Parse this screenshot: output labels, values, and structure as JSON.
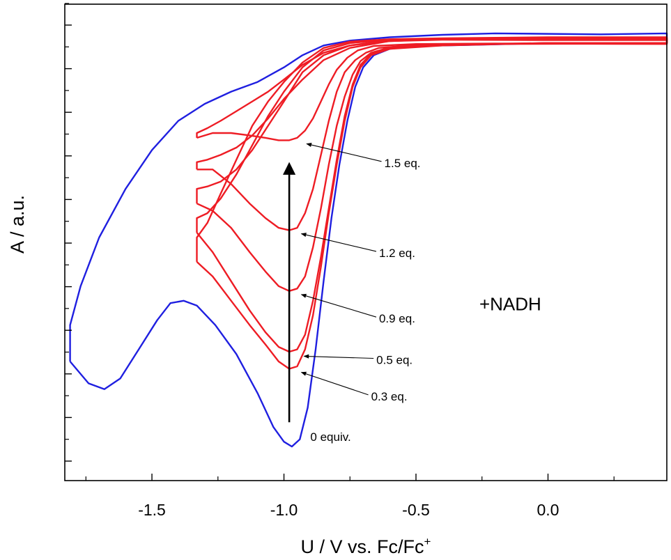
{
  "chart_data": {
    "type": "line",
    "xlabel": "U / V vs. Fc/Fc",
    "xlabel_sup": "+",
    "ylabel": "A / a.u.",
    "xlim": [
      -1.83,
      0.45
    ],
    "ylim": [
      -0.9,
      0.08
    ],
    "x_ticks": [
      -1.5,
      -1.0,
      -0.5,
      0.0
    ],
    "x_tick_labels": [
      "-1.5",
      "-1.0",
      "-0.5",
      "0.0"
    ],
    "y_tick_labels_shown": false,
    "grid": false,
    "colors": {
      "zero_equiv": "#1f1fe0",
      "nadh": "#ee1c24",
      "arrow": "#000000"
    },
    "series": [
      {
        "name": "0 equiv.",
        "color": "#1f1fe0",
        "points": [
          [
            -1.81,
            -0.655
          ],
          [
            -1.74,
            -0.7
          ],
          [
            -1.68,
            -0.712
          ],
          [
            -1.62,
            -0.69
          ],
          [
            -1.55,
            -0.63
          ],
          [
            -1.48,
            -0.57
          ],
          [
            -1.43,
            -0.535
          ],
          [
            -1.38,
            -0.53
          ],
          [
            -1.33,
            -0.54
          ],
          [
            -1.26,
            -0.58
          ],
          [
            -1.18,
            -0.64
          ],
          [
            -1.1,
            -0.72
          ],
          [
            -1.04,
            -0.79
          ],
          [
            -1.0,
            -0.82
          ],
          [
            -0.97,
            -0.83
          ],
          [
            -0.94,
            -0.815
          ],
          [
            -0.91,
            -0.75
          ],
          [
            -0.88,
            -0.63
          ],
          [
            -0.85,
            -0.49
          ],
          [
            -0.82,
            -0.36
          ],
          [
            -0.79,
            -0.25
          ],
          [
            -0.76,
            -0.16
          ],
          [
            -0.73,
            -0.09
          ],
          [
            -0.7,
            -0.05
          ],
          [
            -0.66,
            -0.025
          ],
          [
            -0.6,
            -0.012
          ],
          [
            -0.5,
            -0.006
          ],
          [
            -0.3,
            -0.004
          ],
          [
            0.0,
            0.0
          ],
          [
            0.45,
            0.0
          ],
          [
            0.45,
            0.02
          ],
          [
            0.2,
            0.018
          ],
          [
            -0.2,
            0.02
          ],
          [
            -0.4,
            0.017
          ],
          [
            -0.6,
            0.012
          ],
          [
            -0.75,
            0.005
          ],
          [
            -0.85,
            -0.005
          ],
          [
            -0.93,
            -0.025
          ],
          [
            -1.0,
            -0.05
          ],
          [
            -1.1,
            -0.08
          ],
          [
            -1.2,
            -0.1
          ],
          [
            -1.3,
            -0.125
          ],
          [
            -1.4,
            -0.16
          ],
          [
            -1.5,
            -0.22
          ],
          [
            -1.6,
            -0.3
          ],
          [
            -1.7,
            -0.4
          ],
          [
            -1.77,
            -0.5
          ],
          [
            -1.81,
            -0.58
          ],
          [
            -1.81,
            -0.655
          ]
        ]
      },
      {
        "name": "0.3 eq.",
        "color": "#ee1c24",
        "points": [
          [
            -1.33,
            -0.45
          ],
          [
            -1.27,
            -0.48
          ],
          [
            -1.2,
            -0.53
          ],
          [
            -1.13,
            -0.58
          ],
          [
            -1.07,
            -0.62
          ],
          [
            -1.02,
            -0.655
          ],
          [
            -0.98,
            -0.67
          ],
          [
            -0.95,
            -0.665
          ],
          [
            -0.92,
            -0.63
          ],
          [
            -0.89,
            -0.56
          ],
          [
            -0.86,
            -0.46
          ],
          [
            -0.83,
            -0.35
          ],
          [
            -0.8,
            -0.25
          ],
          [
            -0.77,
            -0.16
          ],
          [
            -0.74,
            -0.09
          ],
          [
            -0.71,
            -0.05
          ],
          [
            -0.67,
            -0.025
          ],
          [
            -0.6,
            -0.012
          ],
          [
            -0.4,
            -0.005
          ],
          [
            0.0,
            0.0
          ],
          [
            0.45,
            0.0
          ],
          [
            0.45,
            0.012
          ],
          [
            0.0,
            0.012
          ],
          [
            -0.4,
            0.01
          ],
          [
            -0.6,
            0.008
          ],
          [
            -0.75,
            0.003
          ],
          [
            -0.85,
            -0.01
          ],
          [
            -0.93,
            -0.04
          ],
          [
            -1.0,
            -0.08
          ],
          [
            -1.06,
            -0.12
          ],
          [
            -1.12,
            -0.17
          ],
          [
            -1.18,
            -0.24
          ],
          [
            -1.24,
            -0.31
          ],
          [
            -1.29,
            -0.37
          ],
          [
            -1.33,
            -0.4
          ],
          [
            -1.33,
            -0.45
          ]
        ]
      },
      {
        "name": "0.5 eq.",
        "color": "#ee1c24",
        "points": [
          [
            -1.33,
            -0.39
          ],
          [
            -1.27,
            -0.43
          ],
          [
            -1.2,
            -0.49
          ],
          [
            -1.13,
            -0.55
          ],
          [
            -1.07,
            -0.595
          ],
          [
            -1.02,
            -0.625
          ],
          [
            -0.98,
            -0.635
          ],
          [
            -0.95,
            -0.63
          ],
          [
            -0.92,
            -0.6
          ],
          [
            -0.89,
            -0.53
          ],
          [
            -0.86,
            -0.44
          ],
          [
            -0.83,
            -0.34
          ],
          [
            -0.8,
            -0.24
          ],
          [
            -0.77,
            -0.15
          ],
          [
            -0.74,
            -0.085
          ],
          [
            -0.71,
            -0.045
          ],
          [
            -0.67,
            -0.022
          ],
          [
            -0.6,
            -0.01
          ],
          [
            -0.4,
            -0.004
          ],
          [
            0.0,
            0.0
          ],
          [
            0.45,
            0.0
          ],
          [
            0.45,
            0.01
          ],
          [
            0.0,
            0.01
          ],
          [
            -0.4,
            0.009
          ],
          [
            -0.6,
            0.007
          ],
          [
            -0.75,
            0.0
          ],
          [
            -0.85,
            -0.015
          ],
          [
            -0.93,
            -0.05
          ],
          [
            -1.0,
            -0.1
          ],
          [
            -1.06,
            -0.15
          ],
          [
            -1.12,
            -0.21
          ],
          [
            -1.18,
            -0.27
          ],
          [
            -1.24,
            -0.32
          ],
          [
            -1.29,
            -0.35
          ],
          [
            -1.33,
            -0.36
          ],
          [
            -1.33,
            -0.39
          ]
        ]
      },
      {
        "name": "0.9 eq.",
        "color": "#ee1c24",
        "points": [
          [
            -1.33,
            -0.33
          ],
          [
            -1.27,
            -0.345
          ],
          [
            -1.2,
            -0.38
          ],
          [
            -1.13,
            -0.43
          ],
          [
            -1.07,
            -0.47
          ],
          [
            -1.02,
            -0.5
          ],
          [
            -0.98,
            -0.51
          ],
          [
            -0.95,
            -0.505
          ],
          [
            -0.92,
            -0.48
          ],
          [
            -0.89,
            -0.42
          ],
          [
            -0.86,
            -0.34
          ],
          [
            -0.83,
            -0.25
          ],
          [
            -0.8,
            -0.17
          ],
          [
            -0.77,
            -0.11
          ],
          [
            -0.74,
            -0.065
          ],
          [
            -0.71,
            -0.037
          ],
          [
            -0.67,
            -0.02
          ],
          [
            -0.6,
            -0.009
          ],
          [
            -0.4,
            -0.003
          ],
          [
            0.0,
            0.0
          ],
          [
            0.45,
            0.0
          ],
          [
            0.45,
            0.01
          ],
          [
            0.0,
            0.01
          ],
          [
            -0.4,
            0.009
          ],
          [
            -0.6,
            0.006
          ],
          [
            -0.75,
            -0.005
          ],
          [
            -0.85,
            -0.025
          ],
          [
            -0.93,
            -0.06
          ],
          [
            -1.0,
            -0.12
          ],
          [
            -1.06,
            -0.17
          ],
          [
            -1.12,
            -0.22
          ],
          [
            -1.18,
            -0.26
          ],
          [
            -1.24,
            -0.285
          ],
          [
            -1.29,
            -0.295
          ],
          [
            -1.33,
            -0.3
          ],
          [
            -1.33,
            -0.33
          ]
        ]
      },
      {
        "name": "1.2 eq.",
        "color": "#ee1c24",
        "points": [
          [
            -1.33,
            -0.26
          ],
          [
            -1.27,
            -0.26
          ],
          [
            -1.2,
            -0.29
          ],
          [
            -1.13,
            -0.33
          ],
          [
            -1.07,
            -0.36
          ],
          [
            -1.02,
            -0.38
          ],
          [
            -0.98,
            -0.385
          ],
          [
            -0.95,
            -0.38
          ],
          [
            -0.92,
            -0.35
          ],
          [
            -0.89,
            -0.3
          ],
          [
            -0.86,
            -0.23
          ],
          [
            -0.83,
            -0.16
          ],
          [
            -0.8,
            -0.1
          ],
          [
            -0.77,
            -0.06
          ],
          [
            -0.73,
            -0.035
          ],
          [
            -0.69,
            -0.02
          ],
          [
            -0.64,
            -0.01
          ],
          [
            -0.5,
            -0.004
          ],
          [
            -0.2,
            -0.002
          ],
          [
            0.45,
            -0.001
          ],
          [
            0.45,
            0.008
          ],
          [
            0.0,
            0.008
          ],
          [
            -0.4,
            0.008
          ],
          [
            -0.6,
            0.004
          ],
          [
            -0.75,
            -0.01
          ],
          [
            -0.85,
            -0.035
          ],
          [
            -0.93,
            -0.075
          ],
          [
            -1.0,
            -0.115
          ],
          [
            -1.06,
            -0.155
          ],
          [
            -1.12,
            -0.19
          ],
          [
            -1.18,
            -0.215
          ],
          [
            -1.24,
            -0.23
          ],
          [
            -1.29,
            -0.24
          ],
          [
            -1.33,
            -0.245
          ],
          [
            -1.33,
            -0.26
          ]
        ]
      },
      {
        "name": "1.5 eq.",
        "color": "#ee1c24",
        "points": [
          [
            -1.33,
            -0.195
          ],
          [
            -1.27,
            -0.185
          ],
          [
            -1.2,
            -0.185
          ],
          [
            -1.13,
            -0.19
          ],
          [
            -1.07,
            -0.195
          ],
          [
            -1.02,
            -0.2
          ],
          [
            -0.98,
            -0.2
          ],
          [
            -0.95,
            -0.195
          ],
          [
            -0.92,
            -0.18
          ],
          [
            -0.89,
            -0.155
          ],
          [
            -0.86,
            -0.12
          ],
          [
            -0.83,
            -0.085
          ],
          [
            -0.8,
            -0.055
          ],
          [
            -0.76,
            -0.03
          ],
          [
            -0.72,
            -0.015
          ],
          [
            -0.66,
            -0.006
          ],
          [
            -0.5,
            -0.002
          ],
          [
            -0.2,
            -0.001
          ],
          [
            0.45,
            -0.002
          ],
          [
            0.45,
            0.006
          ],
          [
            0.0,
            0.006
          ],
          [
            -0.4,
            0.007
          ],
          [
            -0.6,
            0.004
          ],
          [
            -0.75,
            -0.005
          ],
          [
            -0.85,
            -0.02
          ],
          [
            -0.93,
            -0.045
          ],
          [
            -1.0,
            -0.075
          ],
          [
            -1.06,
            -0.1
          ],
          [
            -1.12,
            -0.12
          ],
          [
            -1.18,
            -0.14
          ],
          [
            -1.24,
            -0.16
          ],
          [
            -1.29,
            -0.175
          ],
          [
            -1.33,
            -0.185
          ],
          [
            -1.33,
            -0.195
          ]
        ]
      }
    ],
    "annotations": [
      {
        "text": "1.5 eq.",
        "x": -0.62,
        "y": -0.255,
        "target": [
          -0.93,
          -0.2
        ]
      },
      {
        "text": "1.2 eq.",
        "x": -0.64,
        "y": -0.44,
        "target": [
          -0.95,
          -0.385
        ]
      },
      {
        "text": "0.9 eq.",
        "x": -0.64,
        "y": -0.575,
        "target": [
          -0.95,
          -0.51
        ]
      },
      {
        "text": "0.5 eq.",
        "x": -0.65,
        "y": -0.66,
        "target": [
          -0.94,
          -0.637
        ]
      },
      {
        "text": "0.3 eq.",
        "x": -0.67,
        "y": -0.735,
        "target": [
          -0.95,
          -0.67
        ]
      },
      {
        "text": "0 equiv.",
        "x": -0.9,
        "y": -0.818,
        "target": null
      },
      {
        "text": "+NADH",
        "x": -0.26,
        "y": -0.55,
        "target": null,
        "large": true
      }
    ],
    "trend_arrow": {
      "x": -0.98,
      "y_from": -0.78,
      "y_to": -0.25
    }
  }
}
